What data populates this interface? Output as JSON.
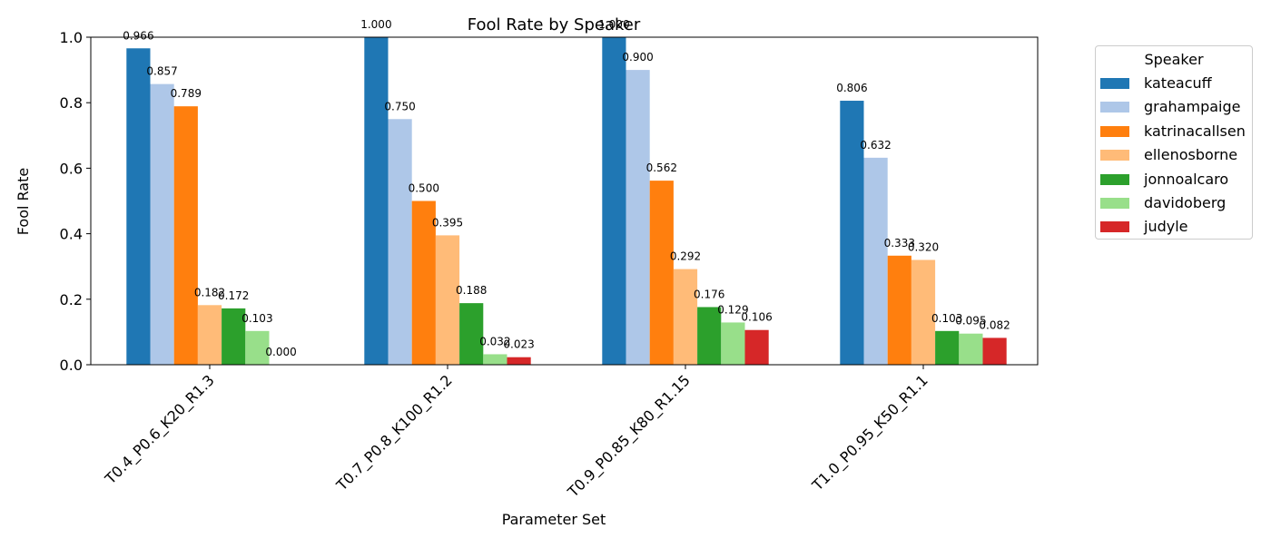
{
  "chart_data": {
    "type": "bar",
    "title": "Fool Rate by Speaker",
    "xlabel": "Parameter Set",
    "ylabel": "Fool Rate",
    "ylim": [
      0,
      1.0
    ],
    "yticks": [
      "0.0",
      "0.2",
      "0.4",
      "0.6",
      "0.8",
      "1.0"
    ],
    "categories": [
      "T0.4_P0.6_K20_R1.3",
      "T0.7_P0.8_K100_R1.2",
      "T0.9_P0.85_K80_R1.15",
      "T1.0_P0.95_K50_R1.1"
    ],
    "legend_title": "Speaker",
    "legend_position": "outside upper right",
    "grid": false,
    "series": [
      {
        "name": "kateacuff",
        "color": "#1f77b4",
        "values": [
          0.966,
          1.0,
          1.0,
          0.806
        ],
        "labels": [
          "0.966",
          "1.000",
          "1.000",
          "0.806"
        ]
      },
      {
        "name": "grahampaige",
        "color": "#aec7e8",
        "values": [
          0.857,
          0.75,
          0.9,
          0.632
        ],
        "labels": [
          "0.857",
          "0.750",
          "0.900",
          "0.632"
        ]
      },
      {
        "name": "katrinacallsen",
        "color": "#ff7f0e",
        "values": [
          0.789,
          0.5,
          0.562,
          0.333
        ],
        "labels": [
          "0.789",
          "0.500",
          "0.562",
          "0.333"
        ]
      },
      {
        "name": "ellenosborne",
        "color": "#ffbb78",
        "values": [
          0.182,
          0.395,
          0.292,
          0.32
        ],
        "labels": [
          "0.182",
          "0.395",
          "0.292",
          "0.320"
        ]
      },
      {
        "name": "jonnoalcaro",
        "color": "#2ca02c",
        "values": [
          0.172,
          0.188,
          0.176,
          0.103
        ],
        "labels": [
          "0.172",
          "0.188",
          "0.176",
          "0.103"
        ]
      },
      {
        "name": "davidoberg",
        "color": "#98df8a",
        "values": [
          0.103,
          0.032,
          0.129,
          0.095
        ],
        "labels": [
          "0.103",
          "0.032",
          "0.129",
          "0.095"
        ]
      },
      {
        "name": "judyle",
        "color": "#d62728",
        "values": [
          0.0,
          0.023,
          0.106,
          0.082
        ],
        "labels": [
          "0.000",
          "0.023",
          "0.106",
          "0.082"
        ]
      }
    ]
  }
}
